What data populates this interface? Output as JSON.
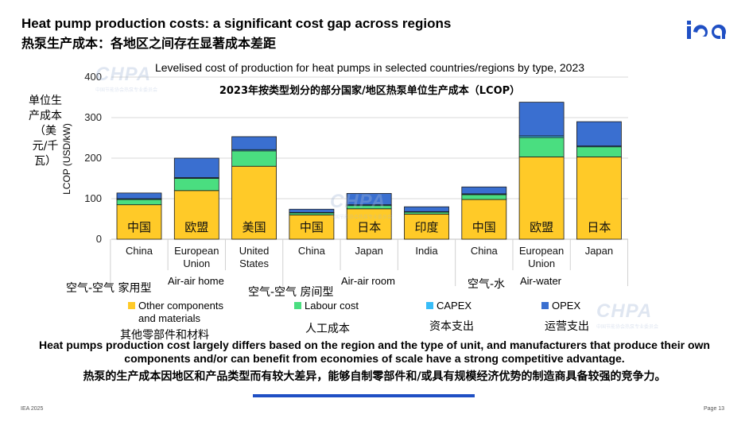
{
  "header": {
    "title_en": "Heat pump production costs: a significant cost gap across regions",
    "title_zh": "热泵生产成本：各地区之间存在显著成本差距",
    "logo_text": "iea"
  },
  "colors": {
    "other": "#FFCA28",
    "labour": "#4ADE80",
    "capex": "#38BDF8",
    "opex": "#3A6FD0",
    "accent": "#1f4fc4",
    "axis": "#d9d9d9"
  },
  "chart_data": {
    "type": "bar",
    "stacked": true,
    "title": "Levelised cost of production for heat pumps in selected countries/regions by type, 2023",
    "subtitle_zh": "2023年按类型划分的部分国家/地区热泵单位生产成本（LCOP）",
    "ylabel": "LCOP (USD/kW)",
    "ylabel_zh": "单位生产成本（美元/千瓦）",
    "ylim": [
      0,
      400
    ],
    "yticks": [
      0,
      100,
      200,
      300,
      400
    ],
    "categories": [
      "China",
      "European Union",
      "United States",
      "China",
      "Japan",
      "India",
      "China",
      "European Union",
      "Japan"
    ],
    "categories_zh": [
      "中国",
      "欧盟",
      "美国",
      "中国",
      "日本",
      "印度",
      "中国",
      "欧盟",
      "日本"
    ],
    "groups": [
      {
        "label_en": "Air-air home",
        "label_zh": "空气-空气 家用型",
        "count": 3
      },
      {
        "label_en": "Air-air room",
        "label_zh": "空气-空气 房间型",
        "count": 3
      },
      {
        "label_en": "Air-water",
        "label_zh": "空气-水",
        "count": 3
      }
    ],
    "series": [
      {
        "name": "Other components and materials",
        "name_zh": "其他零部件和材料",
        "values": [
          85,
          120,
          180,
          60,
          75,
          62,
          98,
          203,
          203
        ]
      },
      {
        "name": "Labour cost",
        "name_zh": "人工成本",
        "values": [
          13,
          30,
          38,
          5,
          8,
          5,
          12,
          48,
          25
        ]
      },
      {
        "name": "CAPEX",
        "name_zh": "资本支出",
        "values": [
          2,
          2,
          3,
          1,
          2,
          1,
          2,
          4,
          2
        ]
      },
      {
        "name": "OPEX",
        "name_zh": "运营支出",
        "values": [
          14,
          48,
          32,
          8,
          28,
          12,
          17,
          83,
          60
        ]
      }
    ]
  },
  "note": {
    "en": "Heat pumps production cost largely differs based on the region and the type of unit, and manufacturers that produce their own components and/or can benefit from economies of scale have a strong competitive advantage.",
    "zh": "热泵的生产成本因地区和产品类型而有较大差异，能够自制零部件和/或具有规模经济优势的制造商具备较强的竞争力。"
  },
  "watermark": {
    "text": "CHPA",
    "sub": "中国节能协会热泵专业委员会"
  },
  "footer": {
    "left": "IEA 2025",
    "right": "Page 13"
  }
}
